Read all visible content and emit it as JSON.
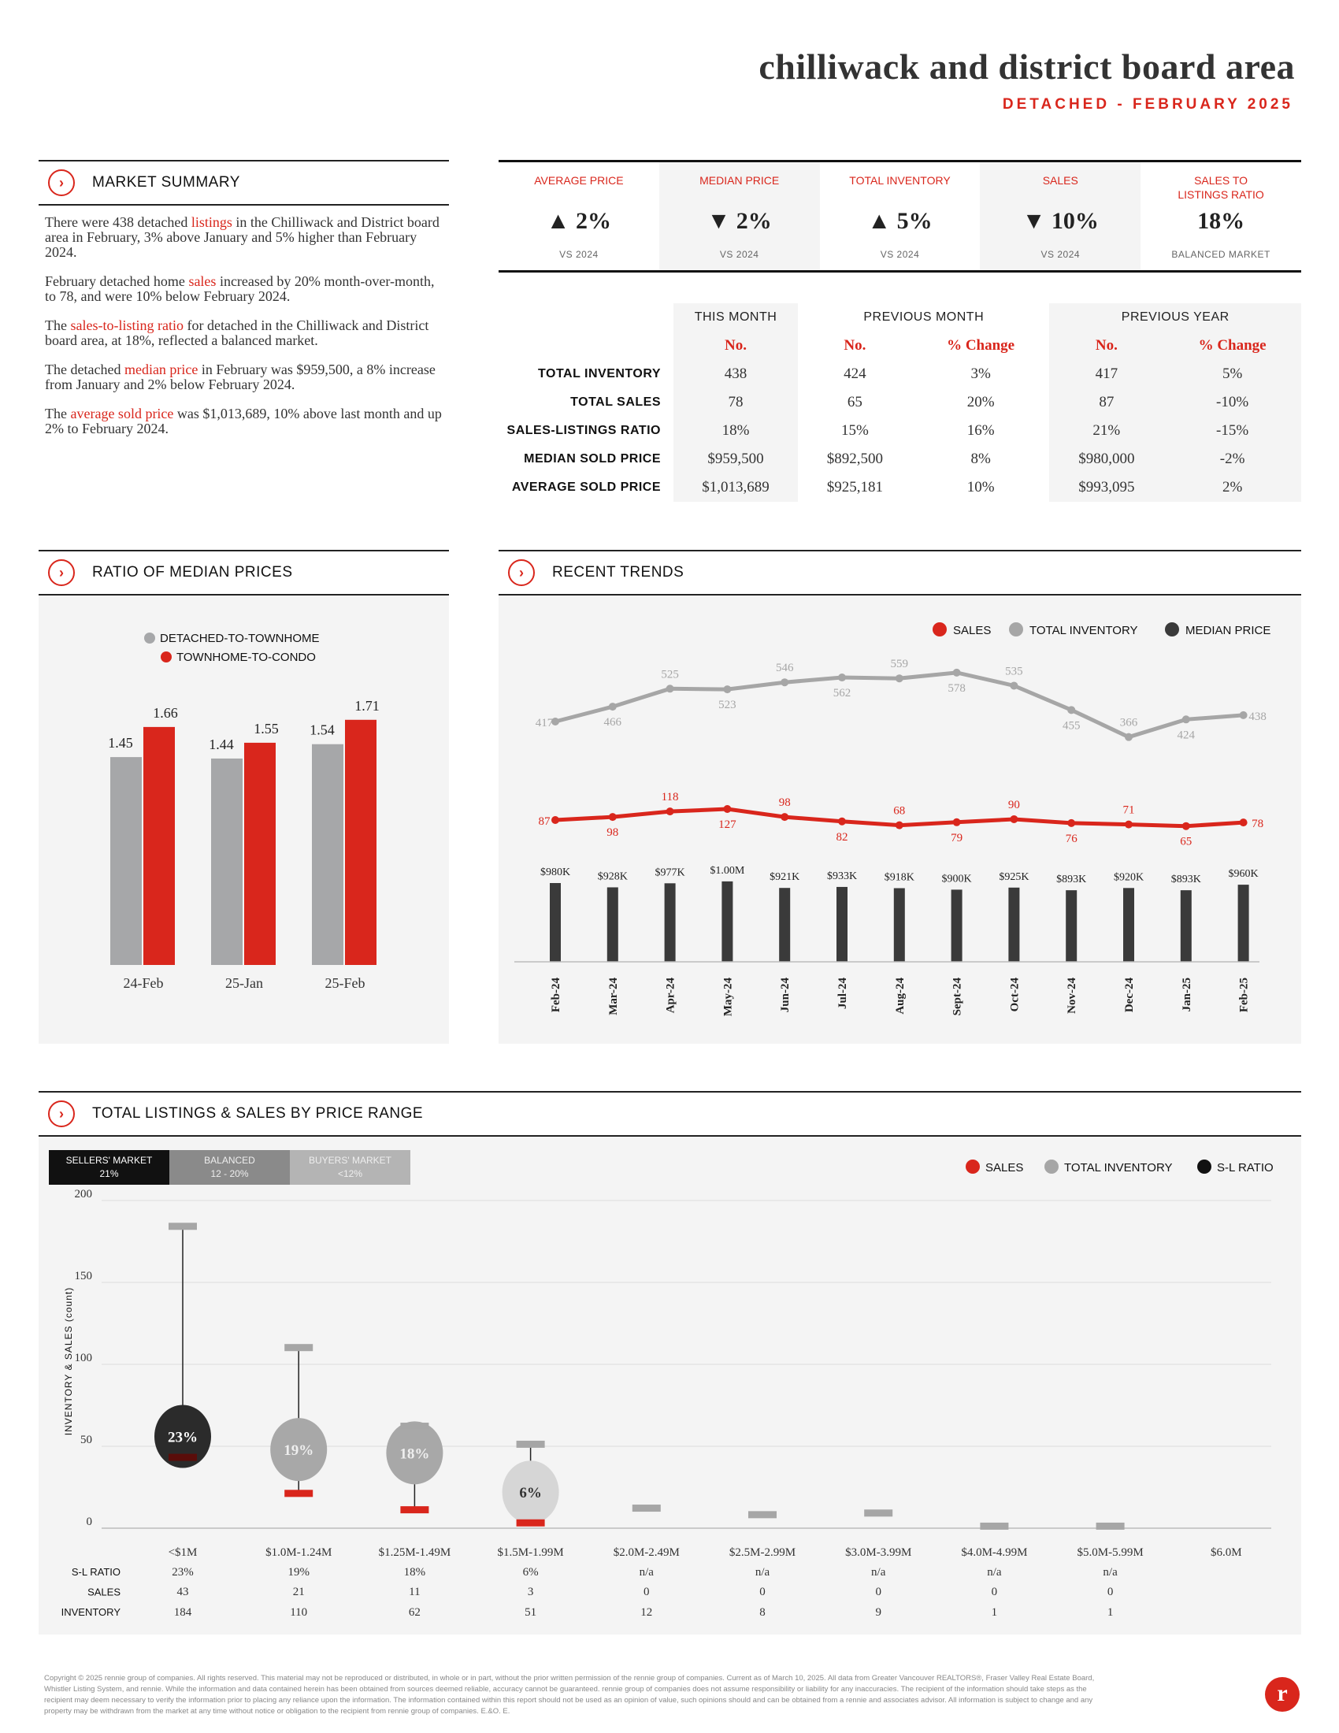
{
  "header": {
    "title": "chilliwack and district board area",
    "subtitle": "DETACHED - FEBRUARY 2025"
  },
  "market_summary": {
    "heading": "MARKET SUMMARY",
    "paragraphs": [
      [
        {
          "t": "There were 438 detached "
        },
        {
          "t": "listings",
          "red": true
        },
        {
          "t": " in the Chilliwack and District board area in February, 3% above January and 5% higher than February 2024."
        }
      ],
      [
        {
          "t": "February detached home "
        },
        {
          "t": "sales",
          "red": true
        },
        {
          "t": " increased by 20% month-over-month, to 78, and were 10% below February 2024."
        }
      ],
      [
        {
          "t": "The "
        },
        {
          "t": "sales-to-listing ratio",
          "red": true
        },
        {
          "t": " for detached in the Chilliwack and District board area, at 18%, reflected a balanced market."
        }
      ],
      [
        {
          "t": "The detached "
        },
        {
          "t": "median price",
          "red": true
        },
        {
          "t": " in February was $959,500, a 8% increase from January and 2% below February 2024."
        }
      ],
      [
        {
          "t": "The "
        },
        {
          "t": "average sold price",
          "red": true
        },
        {
          "t": " was $1,013,689, 10% above last month and up 2% to February 2024."
        }
      ]
    ]
  },
  "stats": [
    {
      "label": "AVERAGE PRICE",
      "value": "▲ 2%",
      "sub": "VS 2024"
    },
    {
      "label": "MEDIAN PRICE",
      "value": "▼ 2%",
      "sub": "VS 2024"
    },
    {
      "label": "TOTAL INVENTORY",
      "value": "▲ 5%",
      "sub": "VS 2024"
    },
    {
      "label": "SALES",
      "value": "▼ 10%",
      "sub": "VS 2024"
    },
    {
      "label": "SALES TO\nLISTINGS RATIO",
      "value": "18%",
      "sub": "BALANCED MARKET"
    }
  ],
  "table": {
    "groups": [
      "THIS MONTH",
      "PREVIOUS MONTH",
      "PREVIOUS YEAR"
    ],
    "subheads": [
      "No.",
      "No.",
      "% Change",
      "No.",
      "% Change"
    ],
    "rows": [
      {
        "label": "TOTAL INVENTORY",
        "cells": [
          "438",
          "424",
          "3%",
          "417",
          "5%"
        ]
      },
      {
        "label": "TOTAL SALES",
        "cells": [
          "78",
          "65",
          "20%",
          "87",
          "-10%"
        ]
      },
      {
        "label": "SALES-LISTINGS RATIO",
        "cells": [
          "18%",
          "15%",
          "16%",
          "21%",
          "-15%"
        ]
      },
      {
        "label": "MEDIAN SOLD PRICE",
        "cells": [
          "$959,500",
          "$892,500",
          "8%",
          "$980,000",
          "-2%"
        ]
      },
      {
        "label": "AVERAGE SOLD PRICE",
        "cells": [
          "$1,013,689",
          "$925,181",
          "10%",
          "$993,095",
          "2%"
        ]
      }
    ]
  },
  "ratio_section": {
    "heading": "RATIO OF MEDIAN PRICES"
  },
  "trends_section": {
    "heading": "RECENT TRENDS"
  },
  "listings_section": {
    "heading": "TOTAL LISTINGS & SALES BY PRICE RANGE",
    "markets": [
      {
        "name": "SELLERS' MARKET",
        "range": "21%"
      },
      {
        "name": "BALANCED",
        "range": "12 - 20%"
      },
      {
        "name": "BUYERS' MARKET",
        "range": "<12%"
      }
    ]
  },
  "footer": {
    "text": "Copyright © 2025 rennie group of companies. All rights reserved. This material may not be reproduced or distributed, in whole or in part, without the prior written permission of the rennie group of companies. Current as of March 10, 2025. All data from Greater Vancouver REALTORS®, Fraser Valley Real Estate Board, Whistler Listing System, and rennie. While the information and data contained herein has been obtained from sources deemed reliable, accuracy cannot be guaranteed. rennie group of companies does not assume responsibility or liability for any inaccuracies. The recipient of the information should take steps as the recipient may deem necessary to verify the information prior to placing any reliance upon the information. The information contained within this report should not be used as an opinion of value, such opinions should and can be obtained from a rennie and associates advisor. All information is subject to change and any property may be withdrawn from the market at any time without notice or obligation to the recipient from rennie group of companies. E.&O. E.",
    "logo": "r"
  },
  "colors": {
    "red": "#d9261c",
    "grey": "#a6a6a6",
    "dark": "#3a3a3a"
  },
  "chart_data": [
    {
      "type": "bar",
      "title": "RATIO OF MEDIAN PRICES",
      "categories": [
        "24-Feb",
        "25-Jan",
        "25-Feb"
      ],
      "series": [
        {
          "name": "DETACHED-TO-TOWNHOME",
          "color": "#a6a7a9",
          "values": [
            1.45,
            1.44,
            1.54
          ]
        },
        {
          "name": "TOWNHOME-TO-CONDO",
          "color": "#d9261c",
          "values": [
            1.66,
            1.55,
            1.71
          ]
        }
      ],
      "ylim": [
        0,
        1.8
      ]
    },
    {
      "type": "line",
      "title": "RECENT TRENDS",
      "categories": [
        "Feb-24",
        "Mar-24",
        "Apr-24",
        "May-24",
        "Jun-24",
        "Jul-24",
        "Aug-24",
        "Sept-24",
        "Oct-24",
        "Nov-24",
        "Dec-24",
        "Jan-25",
        "Feb-25"
      ],
      "series": [
        {
          "name": "SALES",
          "color": "#d9261c",
          "values": [
            87,
            98,
            118,
            127,
            98,
            82,
            68,
            79,
            90,
            76,
            71,
            65,
            78
          ]
        },
        {
          "name": "TOTAL INVENTORY",
          "color": "#a6a6a6",
          "values": [
            417,
            466,
            525,
            523,
            546,
            562,
            559,
            578,
            535,
            455,
            366,
            424,
            438
          ]
        },
        {
          "name": "MEDIAN PRICE",
          "color": "#3a3a3a",
          "type": "bar",
          "values": [
            980,
            928,
            977,
            1000,
            921,
            933,
            918,
            900,
            925,
            893,
            920,
            893,
            960
          ],
          "labels": [
            "$980K",
            "$928K",
            "$977K",
            "$1.00M",
            "$921K",
            "$933K",
            "$918K",
            "$900K",
            "$925K",
            "$893K",
            "$920K",
            "$893K",
            "$960K"
          ]
        }
      ]
    },
    {
      "type": "scatter",
      "title": "TOTAL LISTINGS & SALES BY PRICE RANGE",
      "ylabel": "INVENTORY & SALES (count)",
      "ylim": [
        0,
        200
      ],
      "yticks": [
        0,
        50,
        100,
        150,
        200
      ],
      "categories": [
        "<$1M",
        "$1.0M-1.24M",
        "$1.25M-1.49M",
        "$1.5M-1.99M",
        "$2.0M-2.49M",
        "$2.5M-2.99M",
        "$3.0M-3.99M",
        "$4.0M-4.99M",
        "$5.0M-5.99M",
        "$6.0M"
      ],
      "row_labels": [
        "S-L RATIO",
        "SALES",
        "INVENTORY"
      ],
      "sl_ratio": [
        "23%",
        "19%",
        "18%",
        "6%",
        "n/a",
        "n/a",
        "n/a",
        "n/a",
        "n/a",
        ""
      ],
      "sales": [
        43,
        21,
        11,
        3,
        0,
        0,
        0,
        0,
        0,
        null
      ],
      "inventory": [
        184,
        110,
        62,
        51,
        12,
        8,
        9,
        1,
        1,
        null
      ],
      "legend": [
        "SALES",
        "TOTAL INVENTORY",
        "S-L RATIO"
      ]
    }
  ]
}
